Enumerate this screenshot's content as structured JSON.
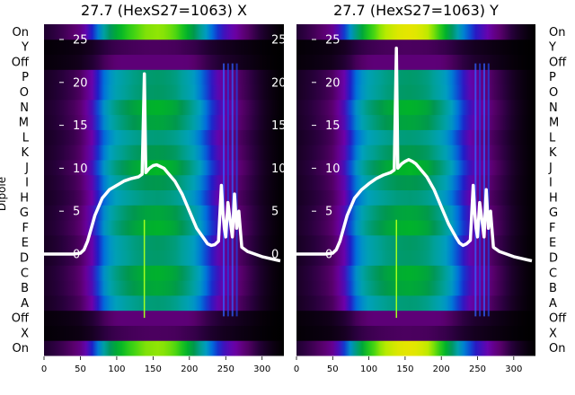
{
  "chart_data": {
    "type": "heatmap",
    "colormap": "nipy_spectral",
    "ylabel": "Dipole",
    "row_labels": [
      "On",
      "X",
      "Off",
      "A",
      "B",
      "C",
      "D",
      "E",
      "F",
      "G",
      "H",
      "I",
      "J",
      "K",
      "L",
      "M",
      "N",
      "O",
      "P",
      "Off",
      "Y",
      "On"
    ],
    "overlay_ticks": [
      0,
      5,
      10,
      15,
      20,
      25
    ],
    "xlim": [
      0,
      330
    ],
    "x_ticks": [
      0,
      50,
      100,
      150,
      200,
      250,
      300
    ],
    "panels": [
      {
        "title": "27.7 (HexS27=1063) X",
        "curve": {
          "x": [
            0,
            20,
            40,
            50,
            55,
            60,
            65,
            70,
            80,
            90,
            100,
            110,
            120,
            130,
            135,
            138,
            140,
            145,
            150,
            155,
            160,
            165,
            170,
            180,
            190,
            200,
            210,
            220,
            225,
            230,
            235,
            240,
            244,
            246,
            248,
            250,
            253,
            256,
            259,
            262,
            265,
            268,
            272,
            280,
            290,
            300,
            310,
            320,
            325
          ],
          "y": [
            0,
            0,
            0,
            0.1,
            0.5,
            1.5,
            3,
            4.5,
            6.5,
            7.5,
            8,
            8.5,
            8.8,
            9,
            9.3,
            21,
            9.5,
            10,
            10.3,
            10.4,
            10.2,
            10,
            9.5,
            8.5,
            7,
            5,
            3,
            1.8,
            1.2,
            1,
            1.1,
            1.5,
            8,
            5,
            3,
            2,
            6,
            4,
            2,
            7,
            3,
            5,
            0.8,
            0.3,
            0,
            -0.3,
            -0.5,
            -0.7,
            -0.8
          ]
        }
      },
      {
        "title": "27.7 (HexS27=1063) Y",
        "curve": {
          "x": [
            0,
            20,
            40,
            50,
            55,
            60,
            65,
            70,
            80,
            90,
            100,
            110,
            120,
            130,
            135,
            138,
            140,
            145,
            150,
            155,
            160,
            165,
            170,
            180,
            190,
            200,
            210,
            220,
            225,
            230,
            235,
            240,
            244,
            246,
            248,
            250,
            253,
            256,
            259,
            262,
            265,
            268,
            272,
            280,
            290,
            300,
            310,
            320,
            325
          ],
          "y": [
            0,
            0,
            0,
            0.1,
            0.5,
            1.5,
            3,
            4.5,
            6.5,
            7.5,
            8.2,
            8.8,
            9.2,
            9.5,
            9.8,
            24,
            10,
            10.5,
            10.8,
            11,
            10.8,
            10.5,
            10,
            9,
            7.5,
            5.5,
            3.5,
            2,
            1.3,
            1,
            1.2,
            1.6,
            8,
            5,
            3,
            2,
            6,
            4,
            2,
            7.5,
            3,
            5,
            0.8,
            0.3,
            0,
            -0.3,
            -0.5,
            -0.7,
            -0.8
          ]
        }
      }
    ],
    "heatmap_profile": {
      "x": [
        0,
        20,
        40,
        50,
        60,
        70,
        80,
        90,
        100,
        120,
        140,
        160,
        180,
        200,
        210,
        220,
        230,
        240,
        250,
        260,
        270,
        285,
        300,
        315,
        330
      ],
      "value": [
        0.05,
        0.08,
        0.12,
        0.15,
        0.22,
        0.3,
        0.45,
        0.55,
        0.62,
        0.7,
        0.74,
        0.75,
        0.72,
        0.62,
        0.55,
        0.45,
        0.35,
        0.28,
        0.22,
        0.2,
        0.15,
        0.1,
        0.05,
        0.02,
        0.0
      ]
    }
  }
}
